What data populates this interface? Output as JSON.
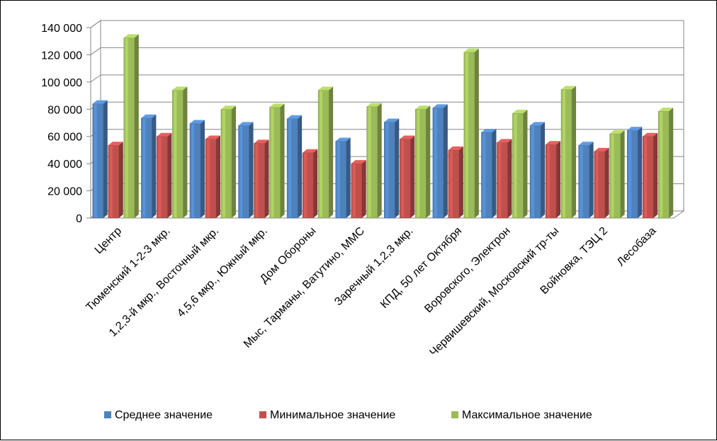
{
  "chart_data": {
    "type": "bar",
    "title": "",
    "xlabel": "",
    "ylabel": "",
    "ylim": [
      0,
      140000
    ],
    "yticks": [
      0,
      20000,
      40000,
      60000,
      80000,
      100000,
      120000,
      140000
    ],
    "ytick_labels": [
      "0",
      "20 000",
      "40 000",
      "60 000",
      "80 000",
      "100 000",
      "120 000",
      "140 000"
    ],
    "grid": true,
    "legend_position": "bottom",
    "categories": [
      "Центр",
      "Тюменский 1-2-3 мкр.",
      "1,2,3-й мкр., Восточный мкр.",
      "4,5,6 мкр., Южный мкр.",
      "Дом Обороны",
      "Мыс, Тарманы, Ватутино, ММС",
      "Заречный 1,2,3 мкр.",
      "КПД, 50 лет Октября",
      "Воровского, Электрон",
      "Червишевский, Московский тр-ты",
      "Войновка, ТЭЦ 2",
      "Лесобаза"
    ],
    "series": [
      {
        "name": "Среднее значение",
        "color": "#4f81bd",
        "values": [
          84000,
          73500,
          69500,
          68000,
          73000,
          56500,
          70500,
          81000,
          63000,
          68000,
          53500,
          64500
        ]
      },
      {
        "name": "Минимальное значение",
        "color": "#c0504d",
        "values": [
          53500,
          60000,
          58000,
          55000,
          48000,
          40000,
          58000,
          50000,
          55500,
          54000,
          49000,
          60000
        ]
      },
      {
        "name": "Максимальное значение",
        "color": "#9bbb59",
        "values": [
          132500,
          94000,
          80000,
          81500,
          94000,
          82000,
          80000,
          122000,
          77000,
          94500,
          62000,
          78500
        ]
      }
    ]
  }
}
